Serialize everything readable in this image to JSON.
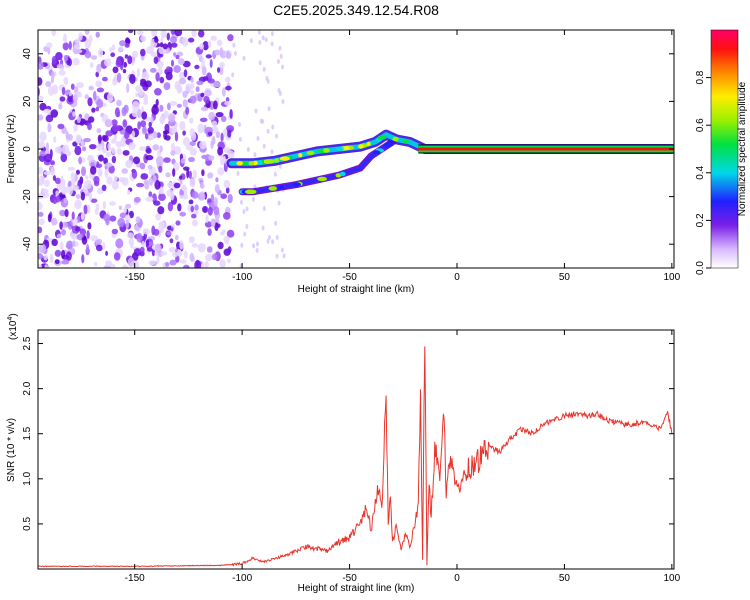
{
  "title": "C2E5.2025.349.12.54.R08",
  "chart_data": [
    {
      "type": "heatmap",
      "name": "spectrogram",
      "xlabel": "Height of straight line (km)",
      "ylabel": "Frequency (Hz)",
      "xlim": [
        -195,
        101
      ],
      "ylim": [
        -50,
        50
      ],
      "x_ticks": [
        -150,
        -100,
        -50,
        0,
        50,
        100
      ],
      "y_ticks": [
        -40,
        -20,
        0,
        20,
        40
      ],
      "colorbar": {
        "label": "Normalized spectral amplitude",
        "range": [
          0,
          1
        ],
        "ticks": [
          0.0,
          0.2,
          0.4,
          0.6,
          0.8
        ]
      },
      "features": [
        {
          "name": "noise-region",
          "x_range": [
            -195,
            -105
          ],
          "freq_range": [
            -50,
            50
          ]
        },
        {
          "name": "main-trace",
          "points": [
            [
              -105,
              -6
            ],
            [
              -95,
              -6
            ],
            [
              -85,
              -5
            ],
            [
              -75,
              -3
            ],
            [
              -65,
              -1
            ],
            [
              -55,
              0
            ],
            [
              -45,
              1
            ],
            [
              -38,
              3
            ],
            [
              -33,
              6
            ],
            [
              -28,
              4
            ],
            [
              -22,
              3
            ],
            [
              -15,
              0
            ],
            [
              -8,
              0
            ],
            [
              0,
              0
            ],
            [
              10,
              0
            ],
            [
              20,
              0
            ],
            [
              40,
              0
            ],
            [
              60,
              0
            ],
            [
              80,
              0
            ],
            [
              100,
              0
            ]
          ]
        },
        {
          "name": "secondary-trace",
          "points": [
            [
              -100,
              -18
            ],
            [
              -95,
              -18
            ],
            [
              -75,
              -15
            ],
            [
              -65,
              -13
            ],
            [
              -55,
              -11
            ],
            [
              -45,
              -8
            ],
            [
              -40,
              -3
            ],
            [
              -35,
              0
            ],
            [
              -30,
              3
            ]
          ]
        }
      ]
    },
    {
      "type": "line",
      "name": "snr",
      "xlabel": "Height of straight line (km)",
      "ylabel": "SNR (10 * v/v)",
      "y_multiplier": "(x10",
      "y_multiplier_exp": "4",
      "y_multiplier_close": ")",
      "xlim": [
        -195,
        101
      ],
      "ylim": [
        0,
        2.65
      ],
      "x_ticks": [
        -150,
        -100,
        -50,
        0,
        50,
        100
      ],
      "y_ticks": [
        0.5,
        1.0,
        1.5,
        2.0,
        2.5
      ],
      "y_tick_labels": [
        "0.5",
        "1.0",
        "1.5",
        "2.0",
        "2.5"
      ],
      "series": [
        {
          "name": "SNR",
          "color": "#e8362e",
          "x": [
            -195,
            -150,
            -110,
            -100,
            -95,
            -90,
            -80,
            -70,
            -60,
            -55,
            -50,
            -45,
            -42,
            -40,
            -37,
            -35,
            -33,
            -32,
            -31,
            -30,
            -28,
            -26,
            -24,
            -22,
            -20,
            -18,
            -17,
            -16,
            -15,
            -14,
            -13,
            -12,
            -10,
            -8,
            -6,
            -5,
            -4,
            -2,
            0,
            5,
            10,
            15,
            20,
            25,
            30,
            35,
            40,
            45,
            50,
            55,
            60,
            65,
            70,
            75,
            80,
            85,
            90,
            95,
            98,
            100
          ],
          "values": [
            0.03,
            0.03,
            0.04,
            0.06,
            0.12,
            0.08,
            0.15,
            0.25,
            0.2,
            0.3,
            0.35,
            0.5,
            0.7,
            0.4,
            0.9,
            0.7,
            1.85,
            0.5,
            0.9,
            0.3,
            0.5,
            0.2,
            0.4,
            0.25,
            0.45,
            0.7,
            1.9,
            0.1,
            2.6,
            0.05,
            0.9,
            0.6,
            1.4,
            1.0,
            1.75,
            0.8,
            1.1,
            1.2,
            0.9,
            1.1,
            1.2,
            1.35,
            1.3,
            1.45,
            1.55,
            1.5,
            1.6,
            1.65,
            1.7,
            1.72,
            1.7,
            1.72,
            1.65,
            1.62,
            1.6,
            1.62,
            1.6,
            1.55,
            1.75,
            1.5
          ]
        }
      ]
    }
  ]
}
